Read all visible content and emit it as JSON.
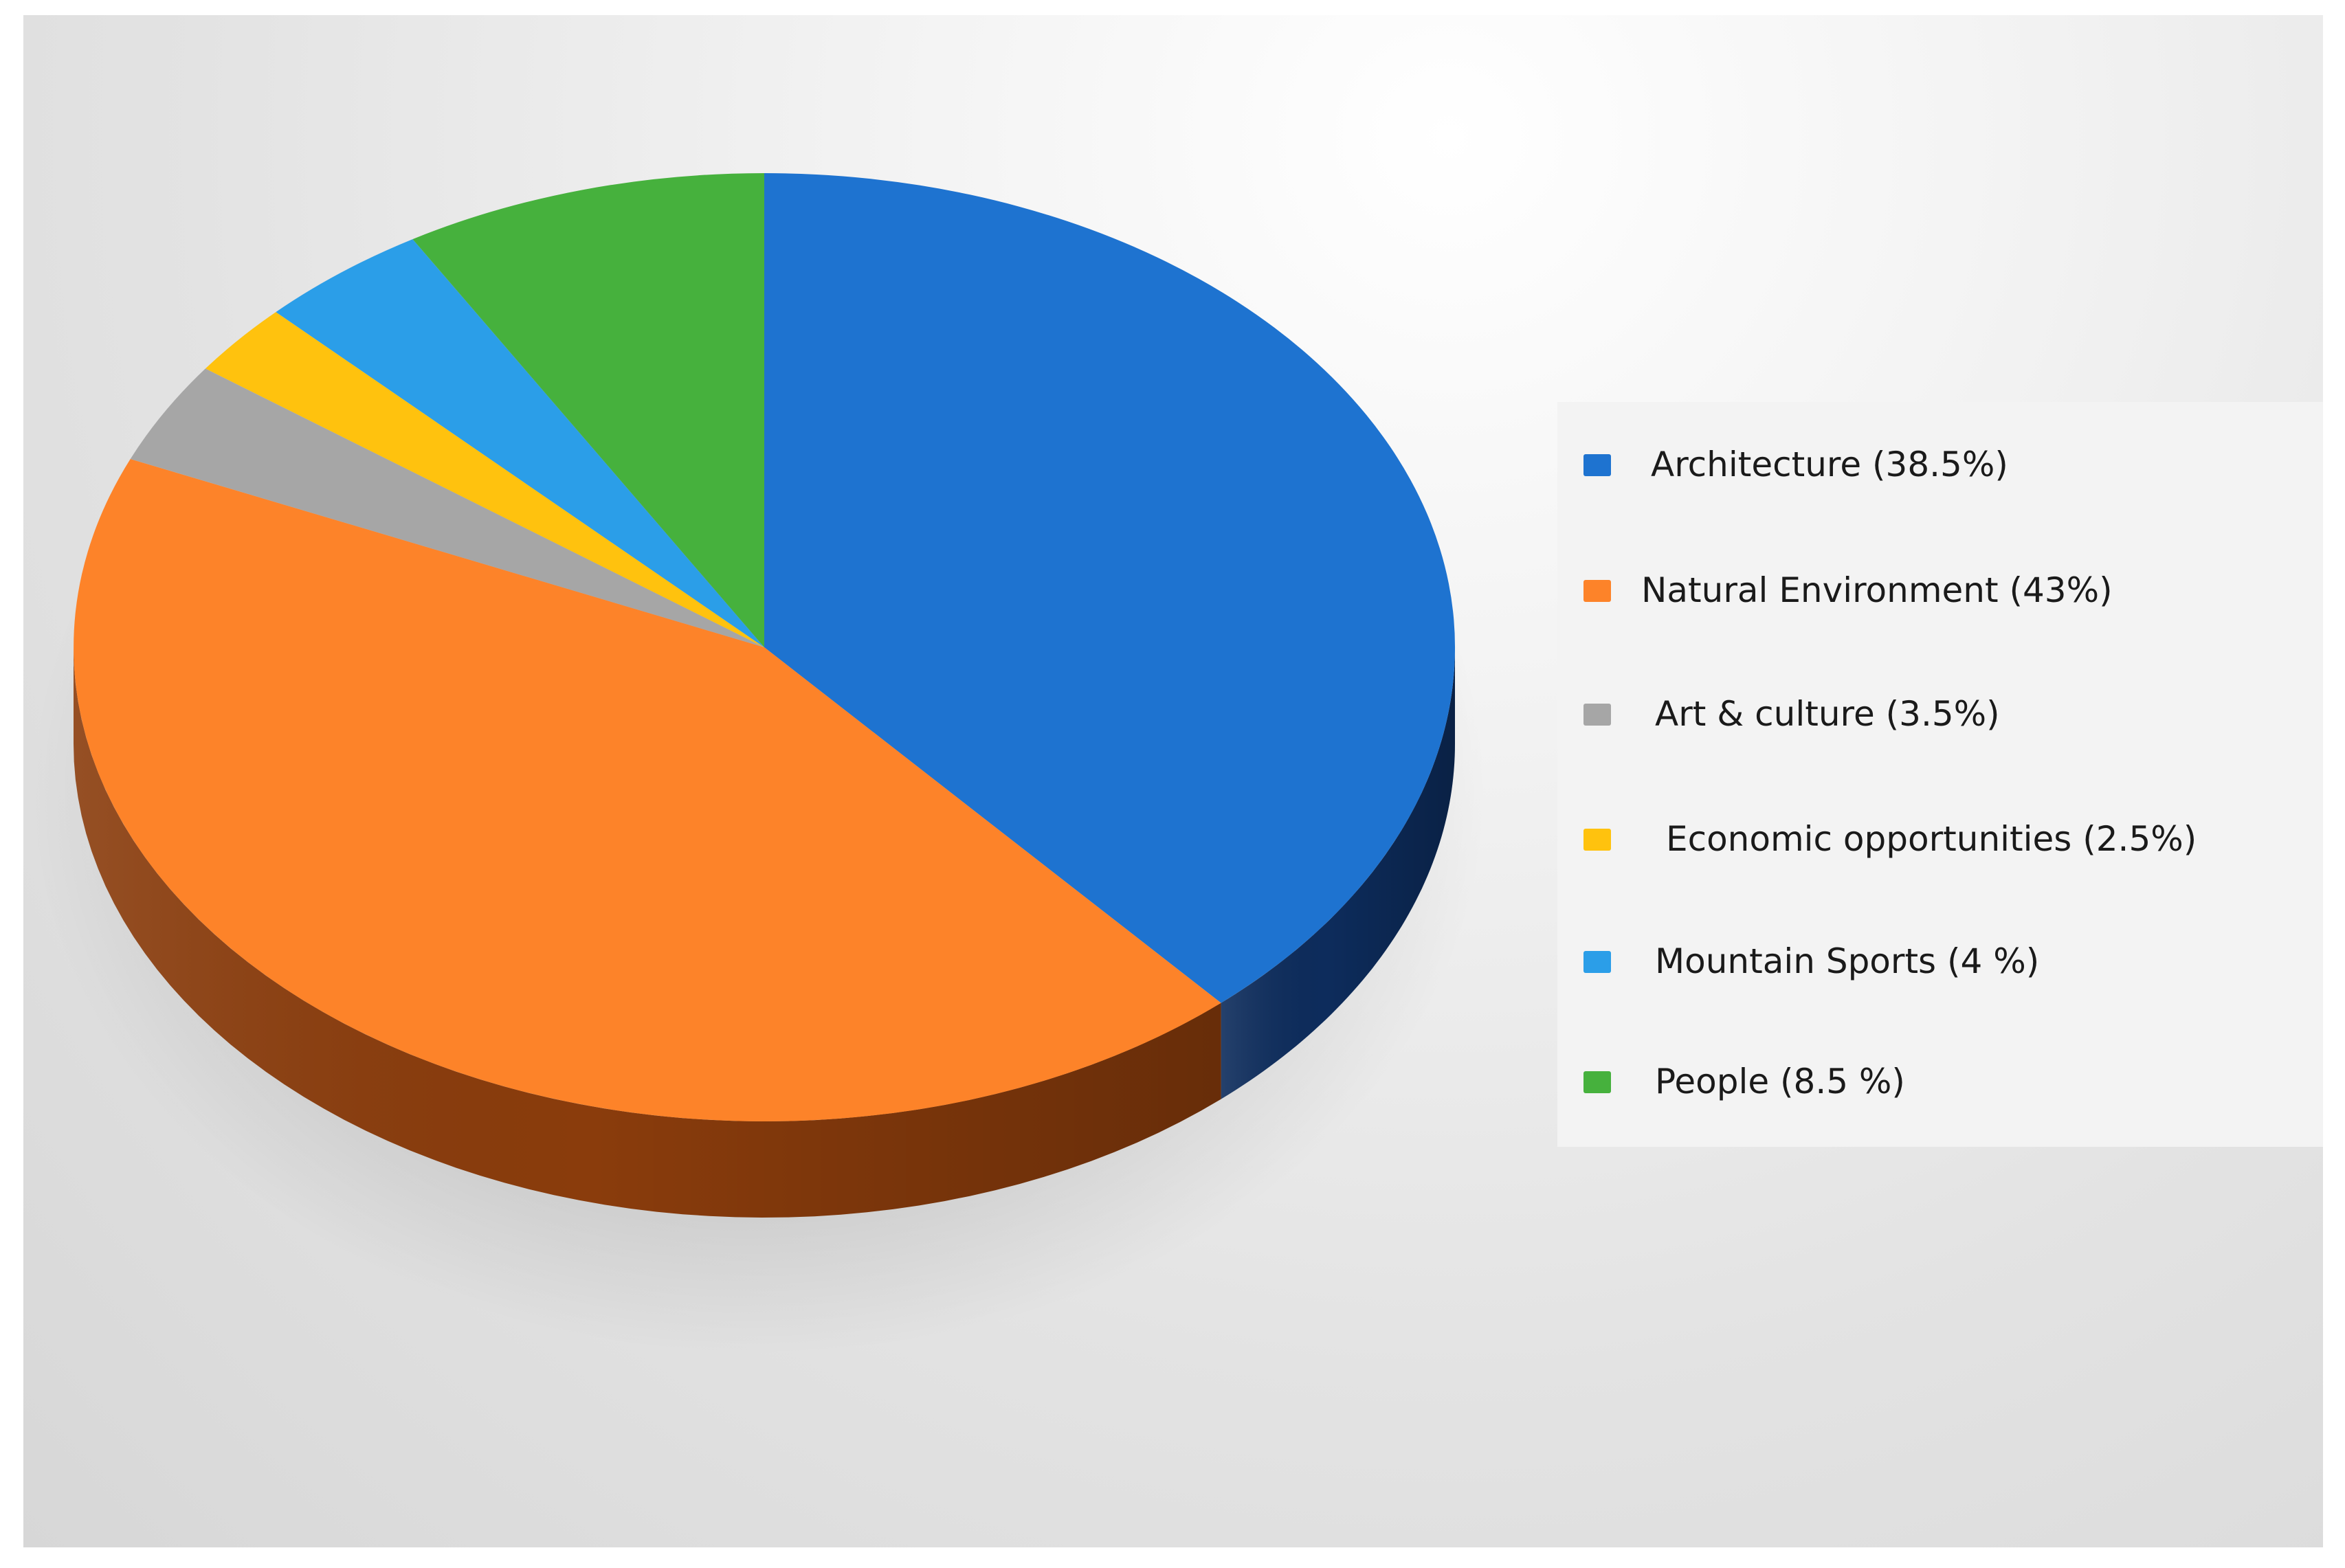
{
  "chart_data": {
    "type": "pie",
    "title": "",
    "style": "3d-tilted",
    "legend_position": "right",
    "categories": [
      "Architecture",
      "Natural Environment",
      "Art & culture",
      "Economic opportunities",
      "Mountain Sports",
      "People"
    ],
    "values": [
      38.5,
      43,
      3.5,
      2.5,
      4,
      8.5
    ],
    "colors": [
      "#1e73d0",
      "#fd8329",
      "#a6a6a6",
      "#ffc20e",
      "#2b9ee8",
      "#46b13d"
    ],
    "side_colors": [
      "#0d2c5c",
      "#8a3c0c",
      "#5e5e5e",
      "#8a6a00",
      "#14507a",
      "#24621d"
    ],
    "legend": [
      {
        "label": "Architecture (38.5%)"
      },
      {
        "label": "Natural Environment (43%)"
      },
      {
        "label": "Art & culture (3.5%)"
      },
      {
        "label": "Economic opportunities (2.5%)"
      },
      {
        "label": "Mountain Sports (4 %)"
      },
      {
        "label": "People (8.5 %)"
      }
    ]
  }
}
